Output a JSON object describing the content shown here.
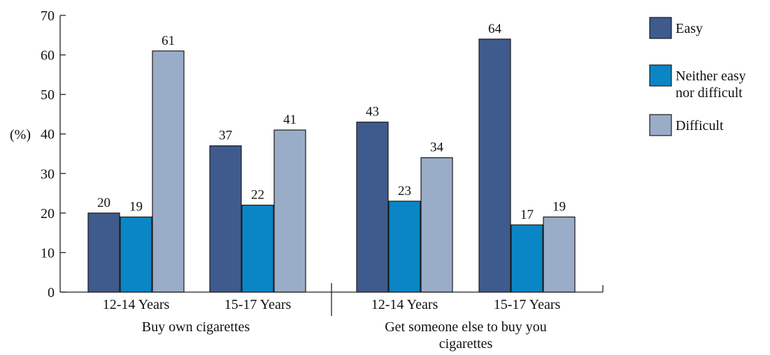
{
  "chart_data": {
    "type": "bar",
    "ylabel": "(%)",
    "ylim": [
      0,
      70
    ],
    "yticks": [
      0,
      10,
      20,
      30,
      40,
      50,
      60,
      70
    ],
    "grid": false,
    "legend_position": "right",
    "groups": [
      {
        "label": "Buy own cigarettes",
        "categories": [
          "12-14 Years",
          "15-17 Years"
        ]
      },
      {
        "label": "Get someone else to buy you cigarettes",
        "label_lines": [
          "Get someone else to buy you",
          "cigarettes"
        ],
        "categories": [
          "12-14 Years",
          "15-17 Years"
        ]
      }
    ],
    "categories": [
      "12-14 Years",
      "15-17 Years",
      "12-14 Years",
      "15-17 Years"
    ],
    "series": [
      {
        "name": "Easy",
        "name_lines": [
          "Easy"
        ],
        "color": "#3f5a8c",
        "values": [
          20,
          37,
          43,
          64
        ]
      },
      {
        "name": "Neither easy nor difficult",
        "name_lines": [
          "Neither easy",
          "nor difficult"
        ],
        "color": "#0a86c6",
        "values": [
          19,
          22,
          23,
          17
        ]
      },
      {
        "name": "Difficult",
        "name_lines": [
          "Difficult"
        ],
        "color": "#9aadc8",
        "values": [
          61,
          41,
          34,
          19
        ]
      }
    ]
  }
}
